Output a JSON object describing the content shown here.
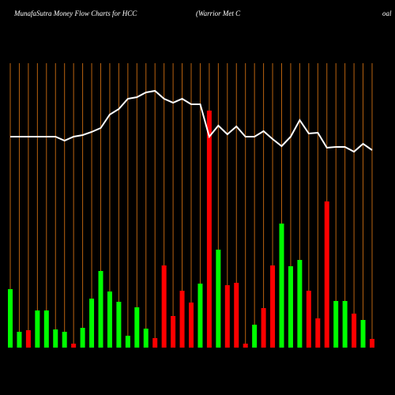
{
  "chart_data": {
    "type": "bar",
    "title": "MunafaSutra  Money Flow  Charts for HCC",
    "subtitle": "(Warrior Met C",
    "title_tail": "oal",
    "ylim": [
      0,
      360
    ],
    "grid": true,
    "grid_color": "#b8620f",
    "line_color": "#ffffff",
    "series": [
      {
        "type": "bar",
        "values": [
          74,
          20,
          22,
          47,
          47,
          23,
          20,
          5,
          25,
          62,
          97,
          71,
          58,
          15,
          51,
          24,
          12,
          104,
          40,
          72,
          57,
          81,
          300,
          124,
          79,
          82,
          5,
          29,
          50,
          104,
          157,
          103,
          111,
          72,
          37,
          185,
          59,
          59,
          43,
          35,
          11
        ],
        "colors": [
          "#00ff00",
          "#00ff00",
          "#ff0000",
          "#00ff00",
          "#00ff00",
          "#00ff00",
          "#00ff00",
          "#ff0000",
          "#00ff00",
          "#00ff00",
          "#00ff00",
          "#00ff00",
          "#00ff00",
          "#00ff00",
          "#00ff00",
          "#00ff00",
          "#ff0000",
          "#ff0000",
          "#ff0000",
          "#ff0000",
          "#ff0000",
          "#00ff00",
          "#ff0000",
          "#00ff00",
          "#ff0000",
          "#ff0000",
          "#ff0000",
          "#00ff00",
          "#ff0000",
          "#ff0000",
          "#00ff00",
          "#00ff00",
          "#00ff00",
          "#ff0000",
          "#ff0000",
          "#ff0000",
          "#00ff00",
          "#00ff00",
          "#ff0000",
          "#00ff00",
          "#ff0000"
        ]
      },
      {
        "type": "line",
        "values": [
          267,
          267,
          267,
          267,
          267,
          267,
          262,
          267,
          269,
          273,
          278,
          295,
          302,
          315,
          317,
          323,
          325,
          315,
          310,
          315,
          308,
          308,
          267,
          281,
          270,
          280,
          267,
          267,
          274,
          264,
          255,
          267,
          288,
          271,
          272,
          253,
          254,
          254,
          248,
          258,
          250
        ]
      }
    ]
  }
}
